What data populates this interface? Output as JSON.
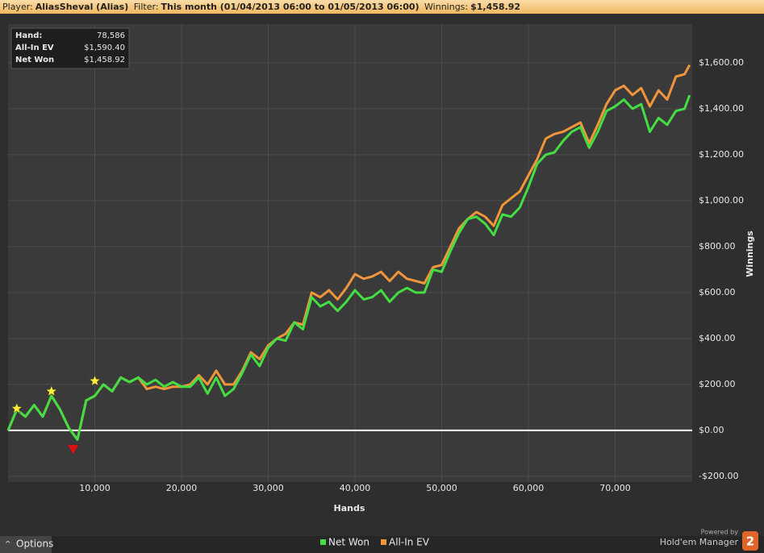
{
  "header": {
    "player_label": "Player:",
    "player": "AliasSheval (Alias)",
    "filter_label": "Filter:",
    "filter": "This month (01/04/2013 06:00 to 01/05/2013 06:00)",
    "winnings_label": "Winnings:",
    "winnings": "$1,458.92"
  },
  "chart_data": {
    "type": "line",
    "x_label": "Hands",
    "y_label": "Winnings",
    "x": [
      0,
      1000,
      2000,
      3000,
      4000,
      5000,
      6000,
      7000,
      8000,
      9000,
      10000,
      11000,
      12000,
      13000,
      14000,
      15000,
      16000,
      17000,
      18000,
      19000,
      20000,
      21000,
      22000,
      23000,
      24000,
      25000,
      26000,
      27000,
      28000,
      29000,
      30000,
      31000,
      32000,
      33000,
      34000,
      35000,
      36000,
      37000,
      38000,
      39000,
      40000,
      41000,
      42000,
      43000,
      44000,
      45000,
      46000,
      47000,
      48000,
      49000,
      50000,
      51000,
      52000,
      53000,
      54000,
      55000,
      56000,
      57000,
      58000,
      59000,
      60000,
      61000,
      62000,
      63000,
      64000,
      65000,
      66000,
      67000,
      68000,
      69000,
      70000,
      71000,
      72000,
      73000,
      74000,
      75000,
      76000,
      77000,
      78000,
      78586
    ],
    "series": [
      {
        "name": "Net Won",
        "color": "#44dd44",
        "values": [
          0,
          90,
          60,
          110,
          60,
          150,
          90,
          10,
          -40,
          130,
          150,
          200,
          170,
          230,
          210,
          230,
          200,
          220,
          190,
          210,
          190,
          190,
          230,
          160,
          230,
          150,
          180,
          250,
          330,
          280,
          360,
          400,
          390,
          470,
          440,
          580,
          540,
          560,
          520,
          560,
          610,
          570,
          580,
          610,
          560,
          600,
          620,
          600,
          600,
          700,
          690,
          780,
          860,
          920,
          930,
          900,
          850,
          940,
          930,
          970,
          1060,
          1160,
          1200,
          1210,
          1260,
          1300,
          1320,
          1230,
          1300,
          1390,
          1410,
          1440,
          1400,
          1420,
          1300,
          1360,
          1330,
          1390,
          1400,
          1458.92
        ]
      },
      {
        "name": "All-In EV",
        "color": "#f0953a",
        "values": [
          0,
          90,
          60,
          110,
          60,
          150,
          90,
          10,
          -40,
          130,
          150,
          200,
          170,
          230,
          210,
          230,
          180,
          190,
          180,
          190,
          190,
          200,
          240,
          200,
          260,
          200,
          200,
          260,
          340,
          310,
          370,
          400,
          420,
          470,
          460,
          600,
          580,
          610,
          570,
          620,
          680,
          660,
          670,
          690,
          650,
          690,
          660,
          650,
          640,
          710,
          720,
          800,
          880,
          920,
          950,
          930,
          890,
          980,
          1010,
          1040,
          1110,
          1180,
          1270,
          1290,
          1300,
          1320,
          1340,
          1250,
          1330,
          1420,
          1480,
          1500,
          1460,
          1490,
          1410,
          1480,
          1440,
          1540,
          1550,
          1590.4
        ]
      }
    ],
    "xlim": [
      0,
      78880
    ],
    "ylim": [
      -225,
      1768
    ],
    "xticks": [
      {
        "value": 10000,
        "label": "10,000"
      },
      {
        "value": 20000,
        "label": "20,000"
      },
      {
        "value": 30000,
        "label": "30,000"
      },
      {
        "value": 40000,
        "label": "40,000"
      },
      {
        "value": 50000,
        "label": "50,000"
      },
      {
        "value": 60000,
        "label": "60,000"
      },
      {
        "value": 70000,
        "label": "70,000"
      }
    ],
    "yticks": [
      {
        "value": -200,
        "label": "-$200.00"
      },
      {
        "value": 0,
        "label": "$0.00"
      },
      {
        "value": 200,
        "label": "$200.00"
      },
      {
        "value": 400,
        "label": "$400.00"
      },
      {
        "value": 600,
        "label": "$600.00"
      },
      {
        "value": 800,
        "label": "$800.00"
      },
      {
        "value": 1000,
        "label": "$1,000.00"
      },
      {
        "value": 1200,
        "label": "$1,200.00"
      },
      {
        "value": 1400,
        "label": "$1,400.00"
      },
      {
        "value": 1600,
        "label": "$1,600.00"
      }
    ],
    "grid": true,
    "zero_line": true,
    "legend": "bottom",
    "markers": [
      {
        "x": 1000,
        "y": 95,
        "symbol": "star",
        "color": "#ffee33"
      },
      {
        "x": 5000,
        "y": 170,
        "symbol": "star",
        "color": "#ffee33"
      },
      {
        "x": 10000,
        "y": 215,
        "symbol": "star",
        "color": "#ffee33"
      },
      {
        "x": 7500,
        "y": -80,
        "symbol": "triangle-down",
        "color": "#dd1111"
      }
    ],
    "info_box": [
      {
        "label": "Hand:",
        "value": "78,586"
      },
      {
        "label": "All-In EV",
        "value": "$1,590.40"
      },
      {
        "label": "Net Won",
        "value": "$1,458.92"
      }
    ]
  },
  "footer": {
    "options": "Options",
    "powered": "Powered by",
    "brand": "Hold'em Manager",
    "brand_number": "2"
  }
}
